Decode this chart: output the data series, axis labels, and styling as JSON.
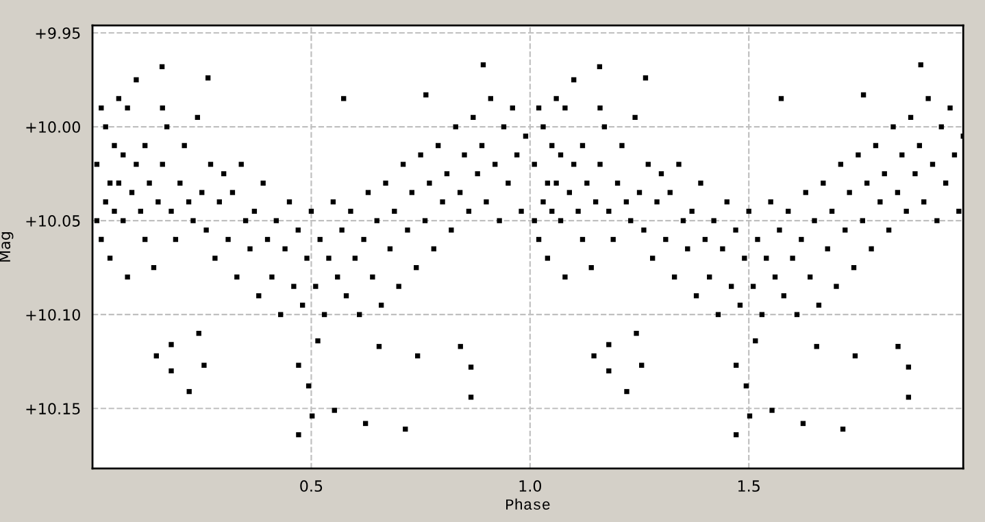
{
  "chart_data": {
    "type": "scatter",
    "xlabel": "Phase",
    "ylabel": "Mag",
    "xlim": [
      0,
      1.99
    ],
    "ylim": [
      10.182,
      9.946
    ],
    "xticks": [
      {
        "value": 0.5,
        "label": "0.5"
      },
      {
        "value": 1.0,
        "label": "1.0"
      },
      {
        "value": 1.5,
        "label": "1.5"
      }
    ],
    "yticks": [
      {
        "value": 9.95,
        "label": "+9.95"
      },
      {
        "value": 10.0,
        "label": "+10.00"
      },
      {
        "value": 10.05,
        "label": "+10.05"
      },
      {
        "value": 10.1,
        "label": "+10.10"
      },
      {
        "value": 10.15,
        "label": "+10.15"
      }
    ],
    "grid": true,
    "marker": "square",
    "series": [
      {
        "color": "#000000",
        "x": [
          0.146,
          0.18,
          0.18,
          0.221,
          0.243,
          0.255,
          0.159,
          0.264,
          0.471,
          0.471,
          0.502,
          0.494,
          0.553,
          0.624,
          0.715,
          0.865,
          0.893,
          0.865,
          0.743,
          0.841,
          0.574,
          0.762,
          0.515,
          0.655,
          0.01,
          0.01,
          0.02,
          0.02,
          0.03,
          0.03,
          0.04,
          0.04,
          0.05,
          0.05,
          0.06,
          0.06,
          0.07,
          0.07,
          0.08,
          0.08,
          0.09,
          0.1,
          0.1,
          0.11,
          0.12,
          0.12,
          0.13,
          0.14,
          0.15,
          0.16,
          0.16,
          0.17,
          0.18,
          0.19,
          0.2,
          0.21,
          0.22,
          0.23,
          0.24,
          0.25,
          0.26,
          0.27,
          0.28,
          0.29,
          0.3,
          0.31,
          0.32,
          0.33,
          0.34,
          0.35,
          0.36,
          0.37,
          0.38,
          0.39,
          0.4,
          0.41,
          0.42,
          0.43,
          0.44,
          0.45,
          0.46,
          0.47,
          0.48,
          0.49,
          0.5,
          0.51,
          0.52,
          0.53,
          0.54,
          0.55,
          0.56,
          0.57,
          0.58,
          0.59,
          0.6,
          0.61,
          0.62,
          0.63,
          0.64,
          0.65,
          0.66,
          0.67,
          0.68,
          0.69,
          0.7,
          0.71,
          0.72,
          0.73,
          0.74,
          0.75,
          0.76,
          0.77,
          0.78,
          0.79,
          0.8,
          0.81,
          0.82,
          0.83,
          0.84,
          0.85,
          0.86,
          0.87,
          0.88,
          0.89,
          0.9,
          0.91,
          0.92,
          0.93,
          0.94,
          0.95,
          0.96,
          0.97,
          0.98,
          0.99,
          1.146,
          1.18,
          1.18,
          1.221,
          1.243,
          1.255,
          1.159,
          1.264,
          1.471,
          1.471,
          1.502,
          1.494,
          1.553,
          1.624,
          1.715,
          1.865,
          1.893,
          1.865,
          1.743,
          1.841,
          1.574,
          1.762,
          1.515,
          1.655,
          1.01,
          1.01,
          1.02,
          1.02,
          1.03,
          1.03,
          1.04,
          1.04,
          1.05,
          1.05,
          1.06,
          1.06,
          1.07,
          1.07,
          1.08,
          1.08,
          1.09,
          1.1,
          1.1,
          1.11,
          1.12,
          1.12,
          1.13,
          1.14,
          1.15,
          1.16,
          1.16,
          1.17,
          1.18,
          1.19,
          1.2,
          1.21,
          1.22,
          1.23,
          1.24,
          1.25,
          1.26,
          1.27,
          1.28,
          1.29,
          1.3,
          1.31,
          1.32,
          1.33,
          1.34,
          1.35,
          1.36,
          1.37,
          1.38,
          1.39,
          1.4,
          1.41,
          1.42,
          1.43,
          1.44,
          1.45,
          1.46,
          1.47,
          1.48,
          1.49,
          1.5,
          1.51,
          1.52,
          1.53,
          1.54,
          1.55,
          1.56,
          1.57,
          1.58,
          1.59,
          1.6,
          1.61,
          1.62,
          1.63,
          1.64,
          1.65,
          1.66,
          1.67,
          1.68,
          1.69,
          1.7,
          1.71,
          1.72,
          1.73,
          1.74,
          1.75,
          1.76,
          1.77,
          1.78,
          1.79,
          1.8,
          1.81,
          1.82,
          1.83,
          1.84,
          1.85,
          1.86,
          1.87,
          1.88,
          1.89,
          1.9,
          1.91,
          1.92,
          1.93,
          1.94,
          1.95,
          1.96,
          1.97,
          1.98,
          1.99
        ],
        "values": [
          10.122,
          10.116,
          10.13,
          10.141,
          10.11,
          10.127,
          9.968,
          9.974,
          10.164,
          10.127,
          10.154,
          10.138,
          10.151,
          10.158,
          10.161,
          10.144,
          9.967,
          10.128,
          10.122,
          10.117,
          9.985,
          9.983,
          10.114,
          10.117,
          10.02,
          10.05,
          10.06,
          9.99,
          10.04,
          10.0,
          10.03,
          10.07,
          10.01,
          10.045,
          9.985,
          10.03,
          10.05,
          10.015,
          9.99,
          10.08,
          10.035,
          9.975,
          10.02,
          10.045,
          10.01,
          10.06,
          10.03,
          10.075,
          10.04,
          9.99,
          10.02,
          10.0,
          10.045,
          10.06,
          10.03,
          10.01,
          10.04,
          10.05,
          9.995,
          10.035,
          10.055,
          10.02,
          10.07,
          10.04,
          10.025,
          10.06,
          10.035,
          10.08,
          10.02,
          10.05,
          10.065,
          10.045,
          10.09,
          10.03,
          10.06,
          10.08,
          10.05,
          10.1,
          10.065,
          10.04,
          10.085,
          10.055,
          10.095,
          10.07,
          10.045,
          10.085,
          10.06,
          10.1,
          10.07,
          10.04,
          10.08,
          10.055,
          10.09,
          10.045,
          10.07,
          10.1,
          10.06,
          10.035,
          10.08,
          10.05,
          10.095,
          10.03,
          10.065,
          10.045,
          10.085,
          10.02,
          10.055,
          10.035,
          10.075,
          10.015,
          10.05,
          10.03,
          10.065,
          10.01,
          10.04,
          10.025,
          10.055,
          10.0,
          10.035,
          10.015,
          10.045,
          9.995,
          10.025,
          10.01,
          10.04,
          9.985,
          10.02,
          10.05,
          10.0,
          10.03,
          9.99,
          10.015,
          10.045,
          10.005,
          10.122,
          10.116,
          10.13,
          10.141,
          10.11,
          10.127,
          9.968,
          9.974,
          10.164,
          10.127,
          10.154,
          10.138,
          10.151,
          10.158,
          10.161,
          10.144,
          9.967,
          10.128,
          10.122,
          10.117,
          9.985,
          9.983,
          10.114,
          10.117,
          10.02,
          10.05,
          10.06,
          9.99,
          10.04,
          10.0,
          10.03,
          10.07,
          10.01,
          10.045,
          9.985,
          10.03,
          10.05,
          10.015,
          9.99,
          10.08,
          10.035,
          9.975,
          10.02,
          10.045,
          10.01,
          10.06,
          10.03,
          10.075,
          10.04,
          9.99,
          10.02,
          10.0,
          10.045,
          10.06,
          10.03,
          10.01,
          10.04,
          10.05,
          9.995,
          10.035,
          10.055,
          10.02,
          10.07,
          10.04,
          10.025,
          10.06,
          10.035,
          10.08,
          10.02,
          10.05,
          10.065,
          10.045,
          10.09,
          10.03,
          10.06,
          10.08,
          10.05,
          10.1,
          10.065,
          10.04,
          10.085,
          10.055,
          10.095,
          10.07,
          10.045,
          10.085,
          10.06,
          10.1,
          10.07,
          10.04,
          10.08,
          10.055,
          10.09,
          10.045,
          10.07,
          10.1,
          10.06,
          10.035,
          10.08,
          10.05,
          10.095,
          10.03,
          10.065,
          10.045,
          10.085,
          10.02,
          10.055,
          10.035,
          10.075,
          10.015,
          10.05,
          10.03,
          10.065,
          10.01,
          10.04,
          10.025,
          10.055,
          10.0,
          10.035,
          10.015,
          10.045,
          9.995,
          10.025,
          10.01,
          10.04,
          9.985,
          10.02,
          10.05,
          10.0,
          10.03,
          9.99,
          10.015,
          10.045,
          10.005
        ]
      }
    ]
  }
}
